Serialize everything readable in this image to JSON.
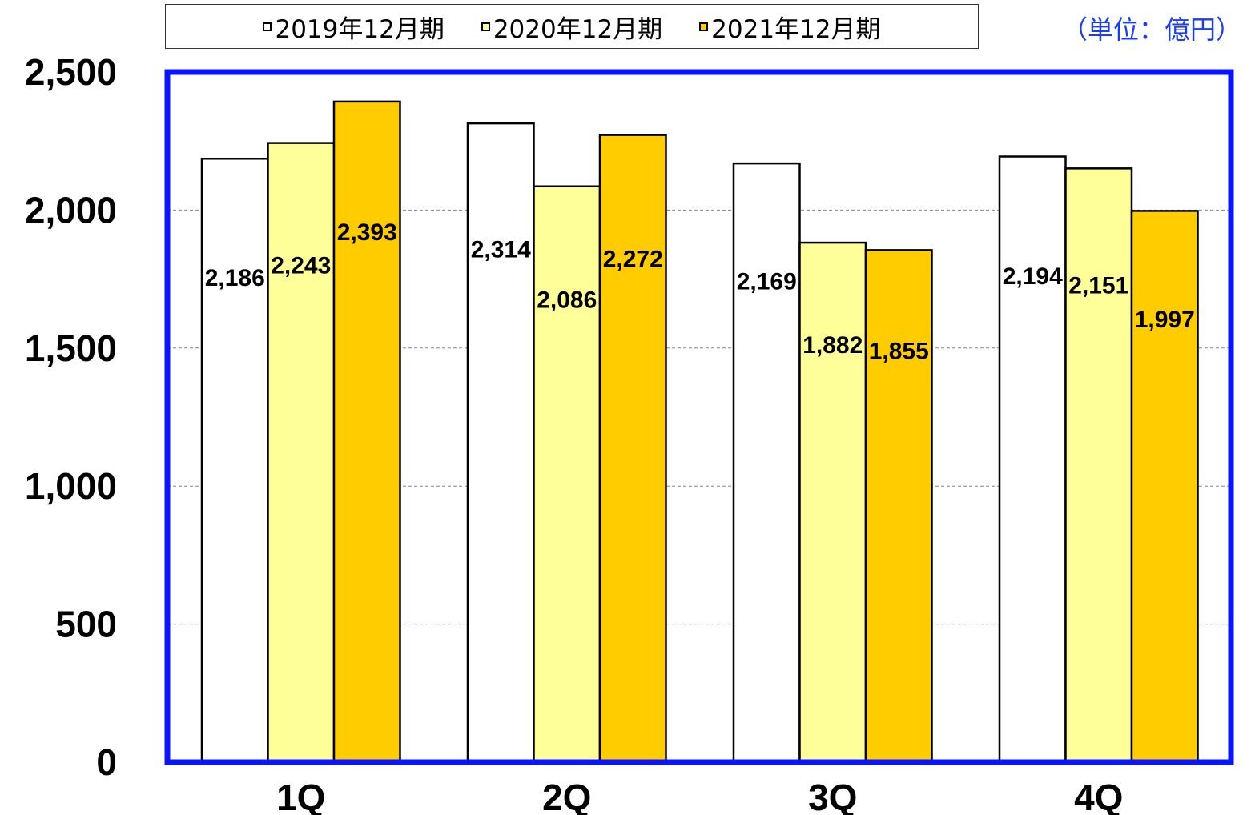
{
  "unit_label": "（単位：億円）",
  "colors": {
    "frame": "#0a14ff",
    "grid": "#888888"
  },
  "chart_data": {
    "type": "bar",
    "categories": [
      "1Q",
      "2Q",
      "3Q",
      "4Q"
    ],
    "series": [
      {
        "name": "2019年12月期",
        "values": [
          2186,
          2314,
          2169,
          2194
        ],
        "color": "#ffffff"
      },
      {
        "name": "2020年12月期",
        "values": [
          2243,
          2086,
          1882,
          2151
        ],
        "color": "#ffff99"
      },
      {
        "name": "2021年12月期",
        "values": [
          2393,
          2272,
          1855,
          1997
        ],
        "color": "#ffcc00"
      }
    ],
    "data_labels": [
      [
        "2,186",
        "2,314",
        "2,169",
        "2,194"
      ],
      [
        "2,243",
        "2,086",
        "1,882",
        "2,151"
      ],
      [
        "2,393",
        "2,272",
        "1,855",
        "1,997"
      ]
    ],
    "yticks": [
      0,
      500,
      1000,
      1500,
      2000,
      2500
    ],
    "ytick_labels": [
      "0",
      "500",
      "1,000",
      "1,500",
      "2,000",
      "2,500"
    ],
    "ylim": [
      0,
      2500
    ],
    "grid": true,
    "legend_position": "top"
  }
}
